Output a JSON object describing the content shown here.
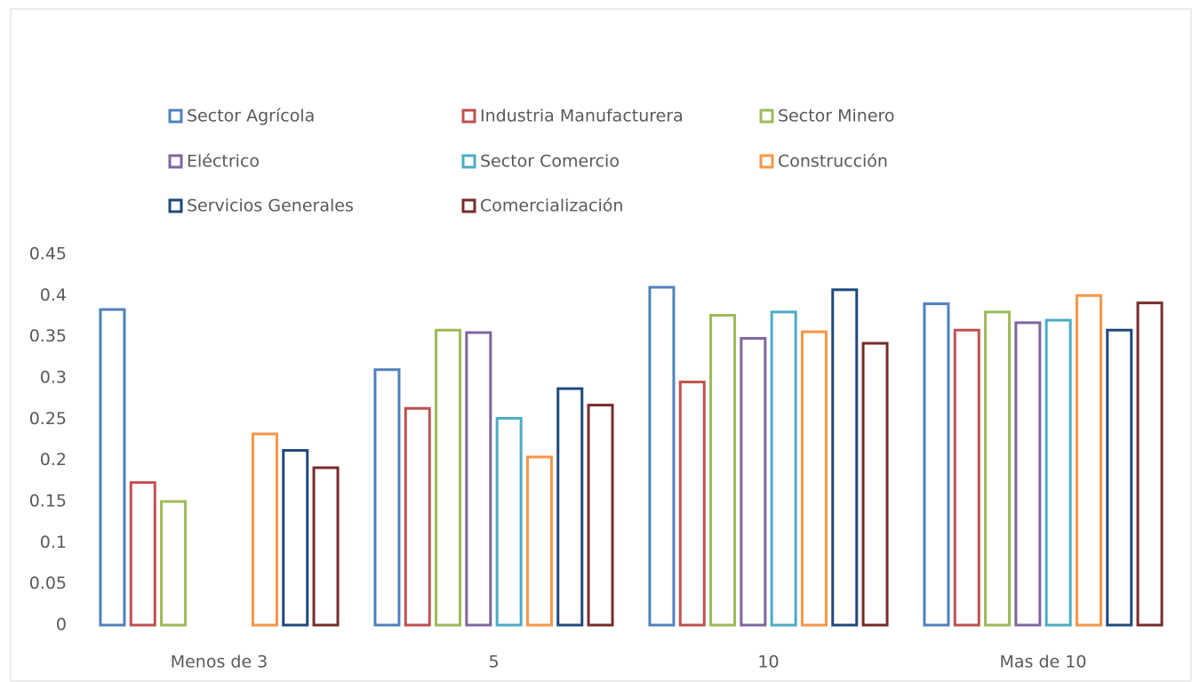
{
  "chart_data": {
    "type": "bar",
    "categories": [
      "Menos de 3",
      "5",
      "10",
      "Mas de 10"
    ],
    "series": [
      {
        "name": "Sector Agrícola",
        "color": "#4f81bd",
        "values": [
          0.383,
          0.31,
          0.41,
          0.39
        ]
      },
      {
        "name": "Industria Manufacturera",
        "color": "#c0504d",
        "values": [
          0.173,
          0.263,
          0.295,
          0.358
        ]
      },
      {
        "name": "Sector Minero",
        "color": "#9bbb59",
        "values": [
          0.15,
          0.358,
          0.376,
          0.38
        ]
      },
      {
        "name": "Eléctrico",
        "color": "#8064a2",
        "values": [
          null,
          0.355,
          0.348,
          0.367
        ]
      },
      {
        "name": "Sector Comercio",
        "color": "#4bacc6",
        "values": [
          null,
          0.251,
          0.38,
          0.37
        ]
      },
      {
        "name": "Construcción",
        "color": "#f79646",
        "values": [
          0.232,
          0.204,
          0.356,
          0.4
        ]
      },
      {
        "name": "Servicios Generales",
        "color": "#1f497d",
        "values": [
          0.212,
          0.287,
          0.407,
          0.358
        ]
      },
      {
        "name": "Comercialización",
        "color": "#772c2a",
        "values": [
          0.191,
          0.267,
          0.342,
          0.391
        ]
      }
    ],
    "ylim": [
      0,
      0.45
    ],
    "yticks": [
      0,
      0.05,
      0.1,
      0.15,
      0.2,
      0.25,
      0.3,
      0.35,
      0.4,
      0.45
    ],
    "grid": false,
    "legend": "top"
  }
}
